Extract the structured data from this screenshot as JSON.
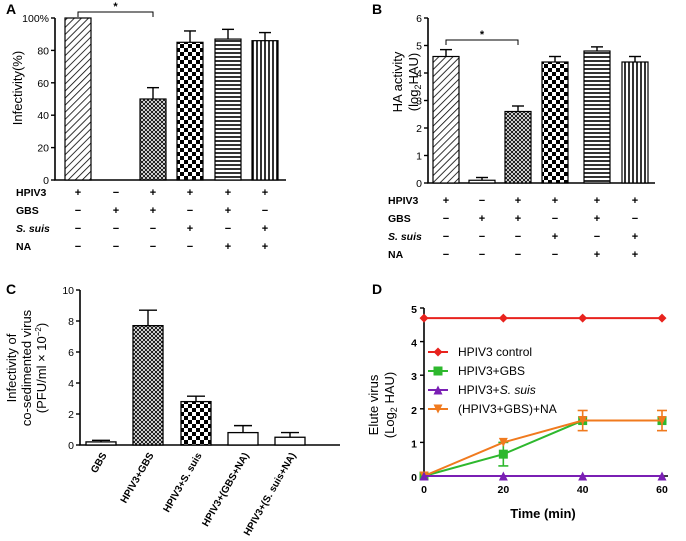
{
  "chart_data": [
    {
      "panel": "A",
      "type": "bar",
      "ylabel": "Infectivity(%)",
      "ylim": [
        0,
        100
      ],
      "yticks": [
        "0",
        "20",
        "40",
        "60",
        "80",
        "100%"
      ],
      "values": [
        100,
        0,
        50,
        85,
        87,
        86
      ],
      "errors": [
        0,
        0,
        7,
        7,
        6,
        5
      ],
      "patterns": [
        "diag",
        "none",
        "cross",
        "check",
        "hline",
        "vline"
      ],
      "significance": "*",
      "treatment_rows": [
        {
          "label": "HPIV3",
          "marks": [
            "+",
            "−",
            "+",
            "+",
            "+",
            "+"
          ]
        },
        {
          "label": "GBS",
          "marks": [
            "−",
            "+",
            "+",
            "−",
            "+",
            "−"
          ]
        },
        {
          "label": "S. suis",
          "marks": [
            "−",
            "−",
            "−",
            "+",
            "−",
            "+"
          ]
        },
        {
          "label": "NA",
          "marks": [
            "−",
            "−",
            "−",
            "−",
            "+",
            "+"
          ]
        }
      ]
    },
    {
      "panel": "B",
      "type": "bar",
      "ylabel_line1": "HA activity",
      "ylabel_line2": "(log",
      "ylabel_sub": "2",
      "ylabel_line2_end": "HAU)",
      "ylim": [
        0,
        6
      ],
      "yticks": [
        "0",
        "1",
        "2",
        "3",
        "4",
        "5",
        "6"
      ],
      "values": [
        4.6,
        0.1,
        2.6,
        4.4,
        4.8,
        4.4
      ],
      "errors": [
        0.25,
        0.1,
        0.2,
        0.2,
        0.15,
        0.2
      ],
      "patterns": [
        "diag",
        "none",
        "cross",
        "check",
        "hline",
        "vline"
      ],
      "significance": "*",
      "treatment_rows": [
        {
          "label": "HPIV3",
          "marks": [
            "+",
            "−",
            "+",
            "+",
            "+",
            "+"
          ]
        },
        {
          "label": "GBS",
          "marks": [
            "−",
            "+",
            "+",
            "−",
            "+",
            "−"
          ]
        },
        {
          "label": "S. suis",
          "marks": [
            "−",
            "−",
            "−",
            "+",
            "−",
            "+"
          ]
        },
        {
          "label": "NA",
          "marks": [
            "−",
            "−",
            "−",
            "−",
            "+",
            "+"
          ]
        }
      ]
    },
    {
      "panel": "C",
      "type": "bar",
      "ylabel_line1": "Infectivity of",
      "ylabel_line2": "co-sedimented virus",
      "ylabel_line3": "(PFU/ml × 10",
      "ylabel_sup": "−2",
      "ylabel_line3_end": ")",
      "ylim": [
        0,
        10
      ],
      "yticks": [
        "0",
        "2",
        "4",
        "6",
        "8",
        "10"
      ],
      "categories": [
        "GBS",
        "HPIV3+GBS",
        "HPIV3+S. suis",
        "HPIV3+(GBS+NA)",
        "HPIV3+(S. suis+NA)"
      ],
      "values": [
        0.2,
        7.7,
        2.8,
        0.8,
        0.5
      ],
      "errors": [
        0.1,
        1.0,
        0.35,
        0.45,
        0.3
      ],
      "patterns": [
        "none",
        "cross",
        "check",
        "none",
        "none"
      ]
    },
    {
      "panel": "D",
      "type": "line",
      "xlabel": "Time (min)",
      "ylabel_line1": "Elute virus",
      "ylabel_line2": "(Log",
      "ylabel_sub": "2",
      "ylabel_line2_end": " HAU)",
      "x": [
        0,
        20,
        40,
        60
      ],
      "xlim": [
        0,
        60
      ],
      "ylim": [
        0,
        5
      ],
      "xticks": [
        "0",
        "20",
        "40",
        "60"
      ],
      "yticks": [
        "0",
        "1",
        "2",
        "3",
        "4",
        "5"
      ],
      "series": [
        {
          "name": "HPIV3 control",
          "color": "#e8231e",
          "marker": "diamond",
          "values": [
            4.7,
            4.7,
            4.7,
            4.7
          ],
          "errors": [
            0,
            0,
            0,
            0
          ]
        },
        {
          "name": "HPIV3+GBS",
          "color": "#2eb82e",
          "marker": "square",
          "values": [
            0,
            0.65,
            1.65,
            1.65
          ],
          "errors": [
            0,
            0.35,
            0,
            0
          ]
        },
        {
          "name_prefix": "HPIV3+",
          "name_italic": "S. suis",
          "name": "HPIV3+S. suis",
          "color": "#7a1fb4",
          "marker": "triangle",
          "values": [
            0,
            0,
            0,
            0
          ],
          "errors": [
            0,
            0,
            0,
            0
          ]
        },
        {
          "name": "(HPIV3+GBS)+NA",
          "color": "#f07a1e",
          "marker": "triangle-down",
          "values": [
            0,
            1.0,
            1.65,
            1.65
          ],
          "errors": [
            0,
            0,
            0.3,
            0.3
          ]
        }
      ]
    }
  ]
}
